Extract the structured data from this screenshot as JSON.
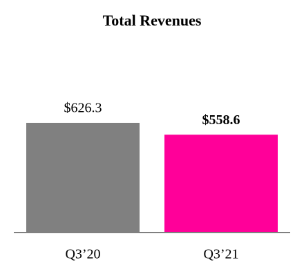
{
  "chart_data": {
    "type": "bar",
    "title": "Total Revenues",
    "categories": [
      "Q3’20",
      "Q3’21"
    ],
    "values": [
      626.3,
      558.6
    ],
    "value_labels": [
      "$626.3",
      "$558.6"
    ],
    "colors": [
      "#808080",
      "#ff0099"
    ]
  }
}
